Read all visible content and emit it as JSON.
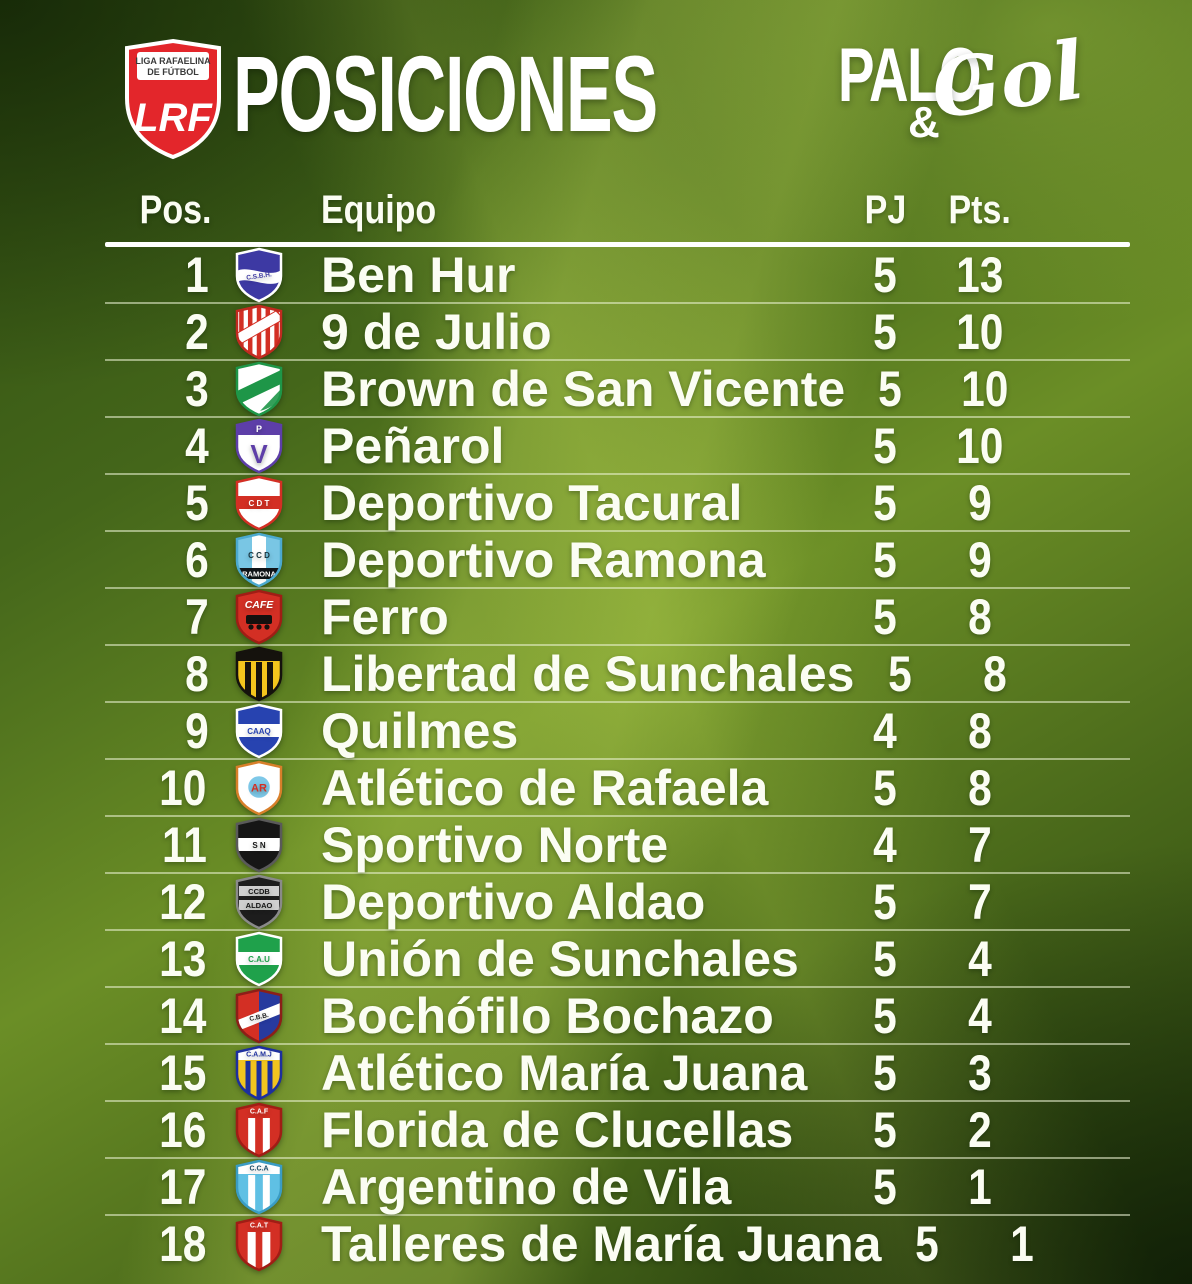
{
  "header": {
    "badge": {
      "line1": "LIGA RAFAELINA",
      "line2": "DE FÚTBOL",
      "monogram": "LRF"
    },
    "title": "POSICIONES",
    "brand": {
      "palo": "PALO",
      "amp": "&",
      "gol": "Gol"
    }
  },
  "table": {
    "columns": {
      "pos": "Pos.",
      "team": "Equipo",
      "played": "PJ",
      "points": "Pts."
    },
    "rows": [
      {
        "pos": "1",
        "team": "Ben Hur",
        "pj": "5",
        "pts": "13",
        "crest": {
          "name": "ben-hur-crest",
          "pattern": "wave",
          "base": "#3d39a3",
          "band": "#ffffff",
          "text": "C.S.B.H.",
          "textColor": "#3d39a3",
          "stroke": "#ffffff"
        }
      },
      {
        "pos": "2",
        "team": "9 de Julio",
        "pj": "5",
        "pts": "10",
        "crest": {
          "name": "nueve-de-julio-crest",
          "pattern": "stripes-ribbon",
          "base": "#ffffff",
          "stripe": "#d32f24",
          "stripes": 5,
          "ribbon": "#ffffff",
          "ribbonStroke": "#d32f24",
          "stroke": "#c12a20"
        }
      },
      {
        "pos": "3",
        "team": "Brown de San Vicente",
        "pj": "5",
        "pts": "10",
        "crest": {
          "name": "brown-san-vicente-crest",
          "pattern": "diag-band",
          "base": "#ffffff",
          "band": "#1e9648",
          "stroke": "#1e9648"
        }
      },
      {
        "pos": "4",
        "team": "Peñarol",
        "pj": "5",
        "pts": "10",
        "crest": {
          "name": "penarol-crest",
          "pattern": "chief-letter",
          "base": "#ffffff",
          "chief": "#5d3ea8",
          "chiefText": "P",
          "chiefTextColor": "#ffffff",
          "letter": "V",
          "letterColor": "#5d3ea8",
          "stroke": "#5d3ea8"
        }
      },
      {
        "pos": "5",
        "team": "Deportivo Tacural",
        "pj": "5",
        "pts": "9",
        "crest": {
          "name": "deportivo-tacural-crest",
          "pattern": "band-h",
          "base": "#ffffff",
          "band": "#d32f24",
          "text": "C D T",
          "textColor": "#ffffff",
          "stroke": "#d32f24"
        }
      },
      {
        "pos": "6",
        "team": "Deportivo Ramona",
        "pj": "5",
        "pts": "9",
        "crest": {
          "name": "deportivo-ramona-crest",
          "pattern": "ramona",
          "base": "#79c6e4",
          "text": "C C D",
          "banner": "RAMONA",
          "stroke": "#4ba9cf"
        }
      },
      {
        "pos": "7",
        "team": "Ferro",
        "pj": "5",
        "pts": "8",
        "crest": {
          "name": "ferro-crest",
          "pattern": "cafe",
          "base": "#d32f24",
          "text": "CAFE",
          "stroke": "#a01d15"
        }
      },
      {
        "pos": "8",
        "team": "Libertad de Sunchales",
        "pj": "5",
        "pts": "8",
        "crest": {
          "name": "libertad-sunchales-crest",
          "pattern": "chief-stripes",
          "chief": "#15120d",
          "chiefText": "",
          "chiefTextColor": "#f3c51d",
          "body": "#f3c51d",
          "stripe": "#15120d",
          "stripes": 3,
          "stripeW": 6,
          "stroke": "#15120d",
          "base": "#f3c51d"
        }
      },
      {
        "pos": "9",
        "team": "Quilmes",
        "pj": "4",
        "pts": "8",
        "crest": {
          "name": "quilmes-crest",
          "pattern": "band-h",
          "base": "#2743b0",
          "band": "#ffffff",
          "text": "CAAQ",
          "textColor": "#2743b0",
          "stroke": "#ffffff"
        }
      },
      {
        "pos": "10",
        "team": "Atlético de Rafaela",
        "pj": "5",
        "pts": "8",
        "crest": {
          "name": "atletico-rafaela-crest",
          "pattern": "ar",
          "base": "#ffffff",
          "circle": "#7ec8e8",
          "text": "AR",
          "textColor": "#d32f24",
          "stroke": "#d87f2a"
        }
      },
      {
        "pos": "11",
        "team": "Sportivo Norte",
        "pj": "4",
        "pts": "7",
        "crest": {
          "name": "sportivo-norte-crest",
          "pattern": "band-h",
          "base": "#161616",
          "band": "#ffffff",
          "text": "S N",
          "textColor": "#161616",
          "stroke": "#5a5a5a"
        }
      },
      {
        "pos": "12",
        "team": "Deportivo Aldao",
        "pj": "5",
        "pts": "7",
        "crest": {
          "name": "deportivo-aldao-crest",
          "pattern": "aldao",
          "base": "#1d1d1d",
          "band": "#cfcfcf",
          "text1": "CCDB",
          "text2": "ALDAO",
          "stroke": "#8a8a8a"
        }
      },
      {
        "pos": "13",
        "team": "Unión de Sunchales",
        "pj": "5",
        "pts": "4",
        "crest": {
          "name": "union-sunchales-crest",
          "pattern": "band-h",
          "base": "#1fa14b",
          "band": "#ffffff",
          "text": "C.A.U",
          "textColor": "#1fa14b",
          "stroke": "#ffffff"
        }
      },
      {
        "pos": "14",
        "team": "Bochófilo Bochazo",
        "pj": "5",
        "pts": "4",
        "crest": {
          "name": "bochofilo-bochazo-crest",
          "pattern": "bochazo",
          "left": "#d32f24",
          "right": "#273a9e",
          "band": "#ffffff",
          "text": "C.B.B.",
          "textColor": "#222222",
          "stroke": "#8c1f18",
          "base": "#d32f24"
        }
      },
      {
        "pos": "15",
        "team": "Atlético María Juana",
        "pj": "5",
        "pts": "3",
        "crest": {
          "name": "atletico-maria-juana-crest",
          "pattern": "chief-stripes",
          "chief": "#ffffff",
          "chiefText": "C.A.M.J",
          "chiefTextColor": "#1d2f9e",
          "body": "#f2c41f",
          "stripe": "#1d2f9e",
          "stripes": 3,
          "stripeW": 5,
          "stroke": "#1d2f9e",
          "base": "#f2c41f"
        }
      },
      {
        "pos": "16",
        "team": "Florida de Clucellas",
        "pj": "5",
        "pts": "2",
        "crest": {
          "name": "florida-clucellas-crest",
          "pattern": "chief-stripes",
          "chief": "#d32f24",
          "chiefText": "C.A.F",
          "chiefTextColor": "#ffffff",
          "body": "#d32f24",
          "stripe": "#ffffff",
          "stripes": 2,
          "stripeW": 7,
          "stroke": "#a01d15",
          "base": "#d32f24"
        }
      },
      {
        "pos": "17",
        "team": "Argentino de Vila",
        "pj": "5",
        "pts": "1",
        "crest": {
          "name": "argentino-vila-crest",
          "pattern": "chief-stripes",
          "chief": "#ffffff",
          "chiefText": "C.C.A",
          "chiefTextColor": "#1a4a66",
          "body": "#5fc0e4",
          "stripe": "#ffffff",
          "stripes": 2,
          "stripeW": 7,
          "stroke": "#3a9cc4",
          "base": "#5fc0e4"
        }
      },
      {
        "pos": "18",
        "team": "Talleres de María Juana",
        "pj": "5",
        "pts": "1",
        "crest": {
          "name": "talleres-maria-juana-crest",
          "pattern": "chief-stripes",
          "chief": "#d32f24",
          "chiefText": "C.A.T",
          "chiefTextColor": "#ffffff",
          "body": "#d32f24",
          "stripe": "#ffffff",
          "stripes": 2,
          "stripeW": 8,
          "stroke": "#a01d15",
          "base": "#d32f24"
        }
      }
    ]
  },
  "colors": {
    "background_green_dark": "#2e4c10",
    "background_green_bright": "#8aa832",
    "accent_red": "#e3262b",
    "text": "#ffffff",
    "row_divider": "rgba(236,244,214,0.55)"
  },
  "chart_data": {
    "type": "table",
    "title": "POSICIONES",
    "columns": [
      "Pos.",
      "Equipo",
      "PJ",
      "Pts."
    ],
    "rows": [
      [
        1,
        "Ben Hur",
        5,
        13
      ],
      [
        2,
        "9 de Julio",
        5,
        10
      ],
      [
        3,
        "Brown de San Vicente",
        5,
        10
      ],
      [
        4,
        "Peñarol",
        5,
        10
      ],
      [
        5,
        "Deportivo Tacural",
        5,
        9
      ],
      [
        6,
        "Deportivo Ramona",
        5,
        9
      ],
      [
        7,
        "Ferro",
        5,
        8
      ],
      [
        8,
        "Libertad de Sunchales",
        5,
        8
      ],
      [
        9,
        "Quilmes",
        4,
        8
      ],
      [
        10,
        "Atlético de Rafaela",
        5,
        8
      ],
      [
        11,
        "Sportivo Norte",
        4,
        7
      ],
      [
        12,
        "Deportivo Aldao",
        5,
        7
      ],
      [
        13,
        "Unión de Sunchales",
        5,
        4
      ],
      [
        14,
        "Bochófilo Bochazo",
        5,
        4
      ],
      [
        15,
        "Atlético María Juana",
        5,
        3
      ],
      [
        16,
        "Florida de Clucellas",
        5,
        2
      ],
      [
        17,
        "Argentino de Vila",
        5,
        1
      ],
      [
        18,
        "Talleres de María Juana",
        5,
        1
      ]
    ]
  }
}
